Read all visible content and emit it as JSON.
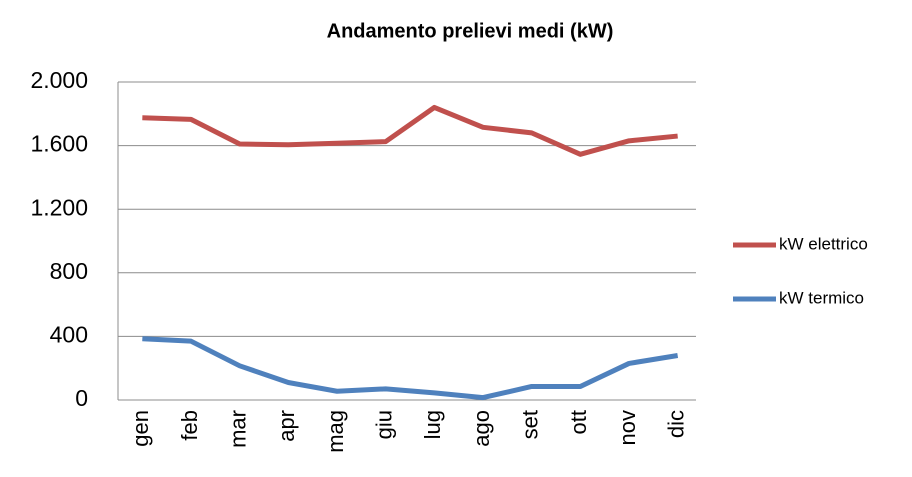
{
  "chart_data": {
    "type": "line",
    "title": "Andamento prelievi medi (kW)",
    "categories": [
      "gen",
      "feb",
      "mar",
      "apr",
      "mag",
      "giu",
      "lug",
      "ago",
      "set",
      "ott",
      "nov",
      "dic"
    ],
    "series": [
      {
        "name": "kW elettrico",
        "color": "#c0504d",
        "values": [
          1775,
          1765,
          1610,
          1605,
          1615,
          1625,
          1840,
          1715,
          1680,
          1545,
          1630,
          1660
        ]
      },
      {
        "name": "kW termico",
        "color": "#4f81bd",
        "values": [
          385,
          370,
          215,
          110,
          55,
          70,
          45,
          15,
          85,
          85,
          230,
          280
        ]
      }
    ],
    "ylim": [
      0,
      2000
    ],
    "yticks": [
      0,
      400,
      800,
      {
        "value": 1200,
        "label": "1.200"
      },
      {
        "value": 1600,
        "label": "1.600"
      },
      {
        "value": 2000,
        "label": "2.000"
      }
    ],
    "grid": true,
    "legend": "right"
  }
}
